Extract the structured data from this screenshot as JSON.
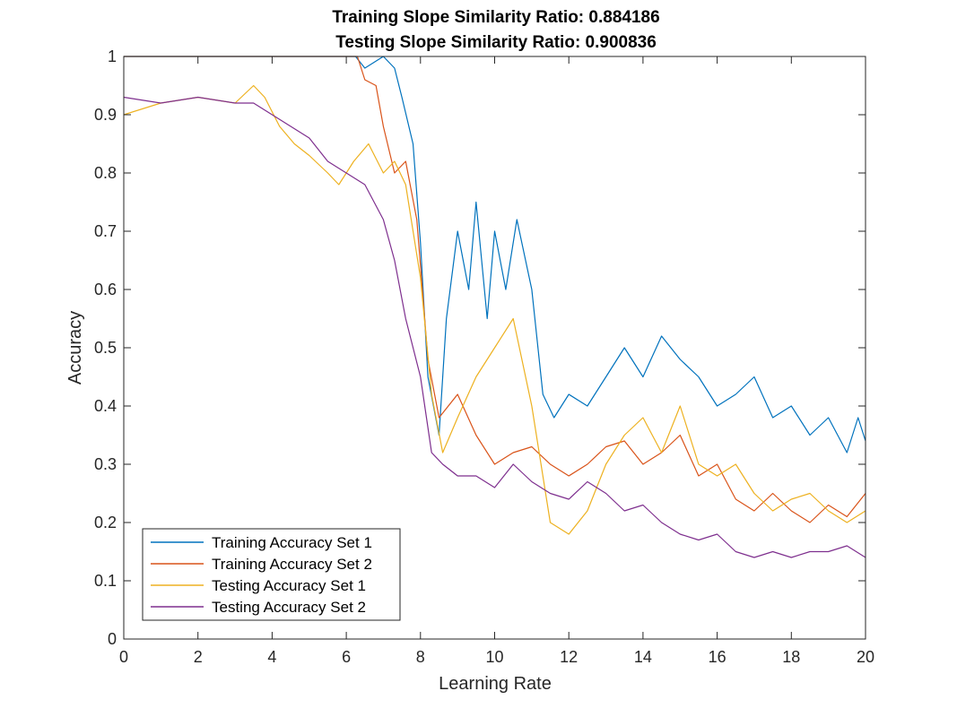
{
  "chart_data": {
    "type": "line",
    "title": [
      "Training Slope Similarity Ratio: 0.884186",
      "Testing Slope Similarity Ratio: 0.900836"
    ],
    "xlabel": "Learning Rate",
    "ylabel": "Accuracy",
    "xlim": [
      0,
      20
    ],
    "ylim": [
      0,
      1
    ],
    "xticks": [
      0,
      2,
      4,
      6,
      8,
      10,
      12,
      14,
      16,
      18,
      20
    ],
    "yticks": [
      0,
      0.1,
      0.2,
      0.3,
      0.4,
      0.5,
      0.6,
      0.7,
      0.8,
      0.9,
      1
    ],
    "grid": false,
    "legend_position": "bottom-left",
    "series": [
      {
        "name": "Training Accuracy Set 1",
        "color": "#0072BD",
        "x": [
          0,
          6.25,
          6.5,
          7,
          7.3,
          7.5,
          7.8,
          8,
          8.2,
          8.5,
          8.7,
          9,
          9.3,
          9.5,
          9.8,
          10,
          10.3,
          10.6,
          11,
          11.3,
          11.6,
          12,
          12.5,
          13,
          13.5,
          14,
          14.5,
          15,
          15.5,
          16,
          16.5,
          17,
          17.5,
          18,
          18.5,
          19,
          19.5,
          19.8,
          20
        ],
        "y": [
          1.0,
          1.0,
          0.98,
          1.0,
          0.98,
          0.93,
          0.85,
          0.68,
          0.45,
          0.35,
          0.55,
          0.7,
          0.6,
          0.75,
          0.55,
          0.7,
          0.6,
          0.72,
          0.6,
          0.42,
          0.38,
          0.42,
          0.4,
          0.45,
          0.5,
          0.45,
          0.52,
          0.48,
          0.45,
          0.4,
          0.42,
          0.45,
          0.38,
          0.4,
          0.35,
          0.38,
          0.32,
          0.38,
          0.34
        ]
      },
      {
        "name": "Training Accuracy Set 2",
        "color": "#D95319",
        "x": [
          0,
          6.3,
          6.5,
          6.8,
          7,
          7.3,
          7.6,
          7.9,
          8.2,
          8.5,
          9,
          9.5,
          10,
          10.5,
          11,
          11.5,
          12,
          12.5,
          13,
          13.5,
          14,
          14.5,
          15,
          15.5,
          16,
          16.5,
          17,
          17.5,
          18,
          18.5,
          19,
          19.5,
          20
        ],
        "y": [
          1.0,
          1.0,
          0.96,
          0.95,
          0.88,
          0.8,
          0.82,
          0.72,
          0.48,
          0.38,
          0.42,
          0.35,
          0.3,
          0.32,
          0.33,
          0.3,
          0.28,
          0.3,
          0.33,
          0.34,
          0.3,
          0.32,
          0.35,
          0.28,
          0.3,
          0.24,
          0.22,
          0.25,
          0.22,
          0.2,
          0.23,
          0.21,
          0.25
        ]
      },
      {
        "name": "Testing Accuracy Set 1",
        "color": "#EDB120",
        "x": [
          0,
          1,
          2,
          3,
          3.5,
          3.8,
          4.2,
          4.6,
          5,
          5.5,
          5.8,
          6.2,
          6.6,
          7,
          7.3,
          7.6,
          8,
          8.3,
          8.6,
          9,
          9.5,
          10,
          10.5,
          11,
          11.5,
          12,
          12.5,
          13,
          13.5,
          14,
          14.5,
          15,
          15.5,
          16,
          16.5,
          17,
          17.5,
          18,
          18.5,
          19,
          19.5,
          20
        ],
        "y": [
          0.9,
          0.92,
          0.93,
          0.92,
          0.95,
          0.93,
          0.88,
          0.85,
          0.83,
          0.8,
          0.78,
          0.82,
          0.85,
          0.8,
          0.82,
          0.78,
          0.62,
          0.42,
          0.32,
          0.38,
          0.45,
          0.5,
          0.55,
          0.4,
          0.2,
          0.18,
          0.22,
          0.3,
          0.35,
          0.38,
          0.32,
          0.4,
          0.3,
          0.28,
          0.3,
          0.25,
          0.22,
          0.24,
          0.25,
          0.22,
          0.2,
          0.22
        ]
      },
      {
        "name": "Testing Accuracy Set 2",
        "color": "#7E2F8E",
        "x": [
          0,
          1,
          2,
          3,
          3.5,
          4,
          4.5,
          5,
          5.5,
          6,
          6.5,
          7,
          7.3,
          7.6,
          8,
          8.3,
          8.6,
          9,
          9.5,
          10,
          10.5,
          11,
          11.5,
          12,
          12.5,
          13,
          13.5,
          14,
          14.5,
          15,
          15.5,
          16,
          16.5,
          17,
          17.5,
          18,
          18.5,
          19,
          19.5,
          20
        ],
        "y": [
          0.93,
          0.92,
          0.93,
          0.92,
          0.92,
          0.9,
          0.88,
          0.86,
          0.82,
          0.8,
          0.78,
          0.72,
          0.65,
          0.55,
          0.45,
          0.32,
          0.3,
          0.28,
          0.28,
          0.26,
          0.3,
          0.27,
          0.25,
          0.24,
          0.27,
          0.25,
          0.22,
          0.23,
          0.2,
          0.18,
          0.17,
          0.18,
          0.15,
          0.14,
          0.15,
          0.14,
          0.15,
          0.15,
          0.16,
          0.14
        ]
      }
    ]
  }
}
